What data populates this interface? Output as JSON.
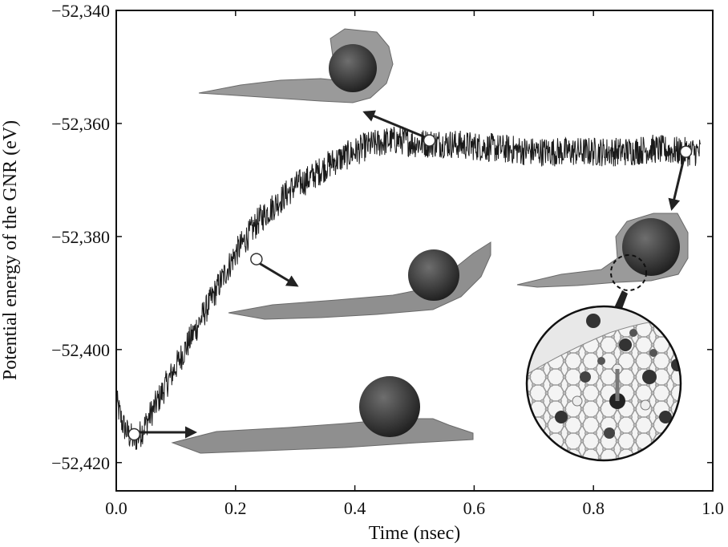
{
  "chart_data": {
    "type": "line",
    "title": "",
    "xlabel": "Time (nsec)",
    "ylabel": "Potential energy of the GNR (eV)",
    "xlim": [
      0.0,
      1.0
    ],
    "ylim": [
      -52425,
      -52340
    ],
    "x_ticks": [
      0.0,
      0.2,
      0.4,
      0.6,
      0.8,
      1.0
    ],
    "x_tick_labels": [
      "0.0",
      "0.2",
      "0.4",
      "0.6",
      "0.8",
      "1.0"
    ],
    "y_ticks": [
      -52340,
      -52360,
      -52380,
      -52400,
      -52420
    ],
    "y_tick_labels": [
      "−52,340",
      "−52,360",
      "−52,380",
      "−52,400",
      "−52,420"
    ],
    "grid": false,
    "legend": "none",
    "line_color": "#1a1a1a",
    "series": [
      {
        "x": [
          0.0,
          0.01,
          0.02,
          0.03,
          0.04,
          0.06,
          0.08,
          0.1,
          0.12,
          0.14,
          0.16,
          0.18,
          0.2,
          0.22,
          0.24,
          0.26,
          0.28,
          0.3,
          0.32,
          0.34,
          0.36,
          0.38,
          0.4,
          0.42,
          0.44,
          0.46,
          0.48,
          0.5,
          0.52,
          0.55,
          0.6,
          0.65,
          0.7,
          0.75,
          0.8,
          0.85,
          0.9,
          0.95,
          0.98
        ],
        "y": [
          -52409,
          -52413,
          -52415,
          -52416,
          -52415,
          -52411,
          -52407,
          -52403,
          -52399,
          -52395,
          -52391,
          -52387,
          -52383,
          -52380,
          -52377,
          -52375,
          -52373,
          -52371,
          -52370,
          -52368.5,
          -52367,
          -52366,
          -52365,
          -52364,
          -52363.5,
          -52363,
          -52363,
          -52363.5,
          -52363.5,
          -52363.5,
          -52364,
          -52364.5,
          -52365,
          -52365,
          -52365,
          -52365,
          -52364.5,
          -52365,
          -52365
        ]
      }
    ],
    "annotation_points": [
      {
        "x": 0.03,
        "y": -52415
      },
      {
        "x": 0.235,
        "y": -52384
      },
      {
        "x": 0.525,
        "y": -52363
      },
      {
        "x": 0.955,
        "y": -52365
      }
    ]
  }
}
